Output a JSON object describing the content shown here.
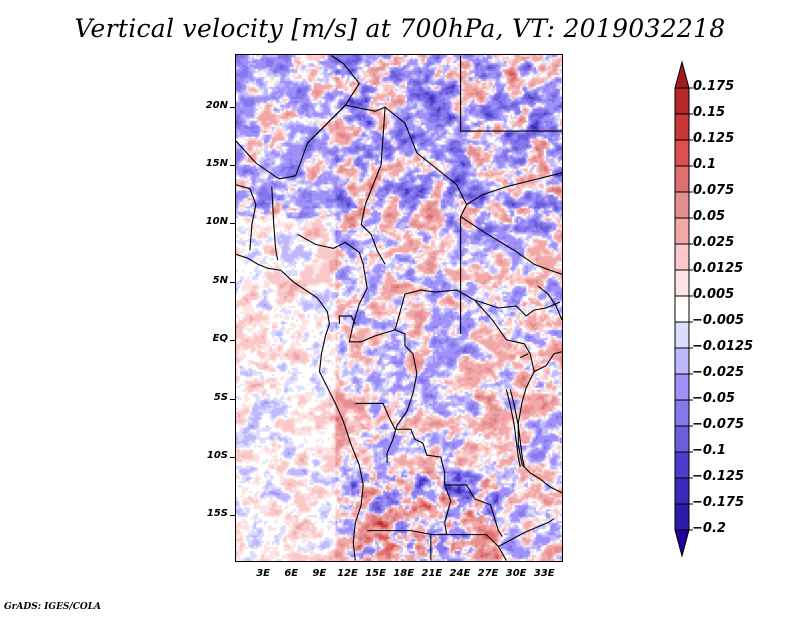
{
  "chart_data": {
    "type": "heatmap",
    "title": "Vertical velocity [m/s] at 700hPa, VT: 2019032218",
    "variable": "Vertical velocity",
    "units": "m/s",
    "level": "700hPa",
    "valid_time": "2019032218",
    "projection": "latlon",
    "xlim": [
      0,
      35
    ],
    "ylim": [
      -19,
      24.5
    ],
    "x_ticks": [
      {
        "value": 3,
        "label": "3E"
      },
      {
        "value": 6,
        "label": "6E"
      },
      {
        "value": 9,
        "label": "9E"
      },
      {
        "value": 12,
        "label": "12E"
      },
      {
        "value": 15,
        "label": "15E"
      },
      {
        "value": 18,
        "label": "18E"
      },
      {
        "value": 21,
        "label": "21E"
      },
      {
        "value": 24,
        "label": "24E"
      },
      {
        "value": 27,
        "label": "27E"
      },
      {
        "value": 30,
        "label": "30E"
      },
      {
        "value": 33,
        "label": "33E"
      }
    ],
    "y_ticks": [
      {
        "value": 20,
        "label": "20N"
      },
      {
        "value": 15,
        "label": "15N"
      },
      {
        "value": 10,
        "label": "10N"
      },
      {
        "value": 5,
        "label": "5N"
      },
      {
        "value": 0,
        "label": "EQ"
      },
      {
        "value": -5,
        "label": "5S"
      },
      {
        "value": -10,
        "label": "10S"
      },
      {
        "value": -15,
        "label": "15S"
      }
    ],
    "colorbar": {
      "orientation": "vertical",
      "extend": "both",
      "levels": [
        0.175,
        0.15,
        0.125,
        0.1,
        0.075,
        0.05,
        0.025,
        0.0125,
        0.005,
        -0.005,
        -0.0125,
        -0.025,
        -0.05,
        -0.075,
        -0.1,
        -0.125,
        -0.175,
        -0.2
      ],
      "labels": [
        "0.175",
        "0.15",
        "0.125",
        "0.1",
        "0.075",
        "0.05",
        "0.025",
        "0.0125",
        "0.005",
        "−0.005",
        "−0.0125",
        "−0.025",
        "−0.05",
        "−0.075",
        "−0.1",
        "−0.125",
        "−0.175",
        "−0.2"
      ],
      "colors_top_to_bottom": [
        "#a01c1c",
        "#b52828",
        "#c83838",
        "#de5050",
        "#e07070",
        "#e49090",
        "#f2a8a8",
        "#fac8c8",
        "#fde4e4",
        "#ffffff",
        "#dcdcfc",
        "#c0b8fc",
        "#a090fa",
        "#8478ec",
        "#6c5fdc",
        "#4a3dcc",
        "#3a28b8",
        "#2c1ca8",
        "#2400a0"
      ]
    },
    "description": "Gridded field of 700hPa vertical velocity over Central/West Africa and the Gulf of Guinea with country borders and coastlines overlaid"
  },
  "footer": {
    "credit": "GrADS: IGES/COLA"
  }
}
